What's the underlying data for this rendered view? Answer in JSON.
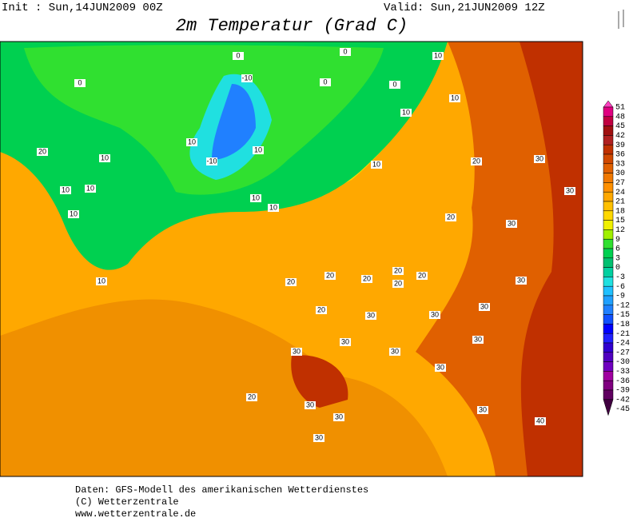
{
  "header": {
    "init": "Init : Sun,14JUN2009 00Z",
    "valid": "Valid: Sun,21JUN2009 12Z",
    "title": "2m Temperatur (Grad C)"
  },
  "legend": {
    "levels": [
      51,
      48,
      45,
      42,
      39,
      36,
      33,
      30,
      27,
      24,
      21,
      18,
      15,
      12,
      9,
      6,
      3,
      0,
      -3,
      -6,
      -9,
      -12,
      -15,
      -18,
      -21,
      -24,
      -27,
      -30,
      -33,
      -36,
      -39,
      -42,
      -45
    ],
    "colors": [
      "#ff40c0",
      "#e00080",
      "#c00040",
      "#a01010",
      "#b02020",
      "#c03000",
      "#d04800",
      "#e06000",
      "#f07800",
      "#ff9000",
      "#ffa800",
      "#ffc000",
      "#ffd800",
      "#f0f000",
      "#a0f000",
      "#30e030",
      "#00d050",
      "#00c070",
      "#00d0a0",
      "#20e0e0",
      "#20c0ff",
      "#20a0ff",
      "#2080ff",
      "#1050ff",
      "#0000ff",
      "#2020ff",
      "#3000d0",
      "#5000c0",
      "#7000c0",
      "#a000a0",
      "#800080",
      "#600060",
      "#400040"
    ]
  },
  "map_labels": [
    0,
    0,
    0,
    0,
    0,
    10,
    -10,
    -10,
    10,
    10,
    10,
    10,
    10,
    10,
    10,
    10,
    10,
    10,
    10,
    10,
    20,
    20,
    20,
    20,
    20,
    20,
    20,
    20,
    20,
    20,
    20,
    30,
    30,
    30,
    30,
    30,
    30,
    30,
    30,
    30,
    30,
    30,
    40,
    30,
    30,
    30,
    30,
    30
  ],
  "footer": [
    "Daten: GFS-Modell des amerikanischen Wetterdienstes",
    "(C) Wetterzentrale",
    "www.wetterzentrale.de"
  ]
}
